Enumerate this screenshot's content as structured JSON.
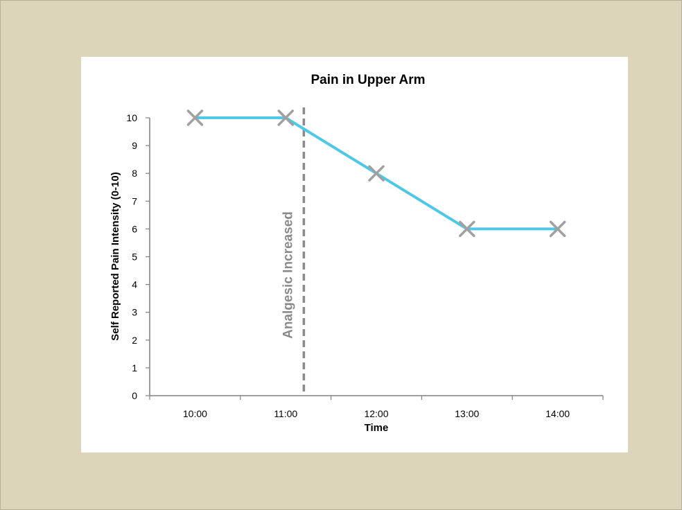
{
  "chart_data": {
    "type": "line",
    "title": "Pain in Upper Arm",
    "xlabel": "Time",
    "ylabel": "Self Reported Pain Intensity (0-10)",
    "categories": [
      "10:00",
      "11:00",
      "12:00",
      "13:00",
      "14:00"
    ],
    "y_ticks": [
      0,
      1,
      2,
      3,
      4,
      5,
      6,
      7,
      8,
      9,
      10
    ],
    "ylim": [
      0,
      10
    ],
    "series": [
      {
        "values": [
          10,
          10,
          8,
          6,
          6
        ]
      }
    ],
    "annotation": {
      "text": "Analgesic Increased",
      "x_position": 1.2
    },
    "grid": false,
    "legend": "none",
    "colors": {
      "line": "#4ec8e6",
      "marker": "#a0a0a0",
      "annotation": "#8a8a8a",
      "axis": "#808080"
    }
  }
}
